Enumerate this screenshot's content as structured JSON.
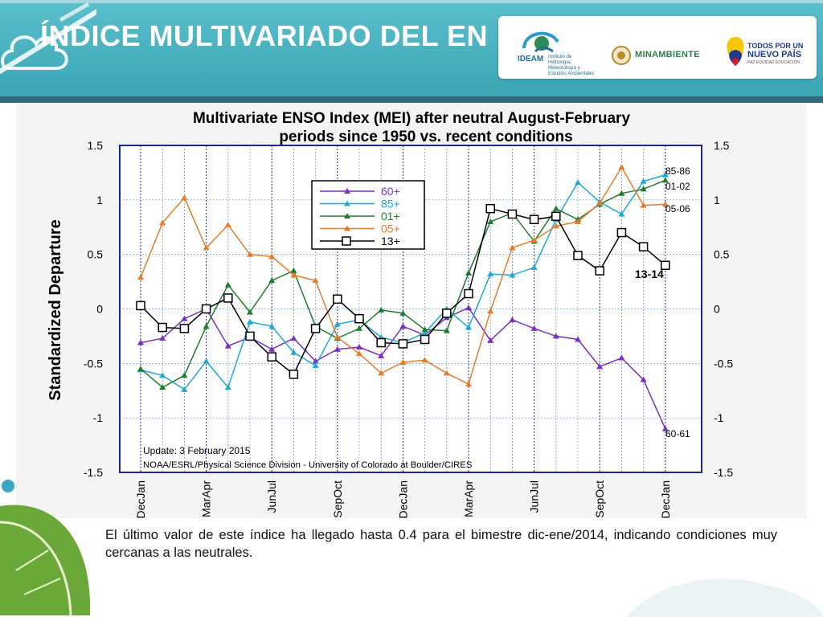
{
  "slide": {
    "title": "ÍNDICE MULTIVARIADO DEL EN",
    "caption": "El último valor de este índice ha llegado hasta 0.4 para el bimestre dic-ene/2014, indicando condiciones muy cercanas a las neutrales."
  },
  "logos": {
    "ideam": {
      "name": "IDEAM",
      "sub": "Instituto de Hidrología, Meteorología y Estudios Ambientales"
    },
    "minambiente": {
      "name": "MINAMBIENTE"
    },
    "nuevo_pais": {
      "line1": "TODOS POR UN",
      "line2": "NUEVO PAÍS",
      "line3": "PAZ  EQUIDAD  EDUCACIÓN"
    }
  },
  "colors": {
    "banner": "#45b1bf",
    "s60": "#7b2fbe",
    "s85": "#1fa8d6",
    "s01": "#1e7d2c",
    "s05": "#e67c2a",
    "s13": "#000000"
  },
  "chart_data": {
    "type": "line",
    "title_line1": "Multivariate ENSO Index (MEI) after neutral August-February",
    "title_line2": "periods since 1950 vs. recent conditions",
    "ylabel": "Standardized Departure",
    "ylim": [
      -1.5,
      1.5
    ],
    "yticks": [
      "1.5",
      "1",
      "0.5",
      "0",
      "-0.5",
      "-1",
      "-1.5"
    ],
    "x_labels": [
      "DecJan",
      "MarApr",
      "JunJul",
      "SepOct",
      "DecJan",
      "MarApr",
      "JunJul",
      "SepOct",
      "DecJan"
    ],
    "update_note": "Update: 3 February 2015",
    "source_note": "NOAA/ESRL/Physical Science Division - University of Colorado at Boulder/CIRES",
    "end_labels": [
      "85-86",
      "01-02",
      "05-06",
      "13-14",
      "60-61"
    ],
    "series": [
      {
        "name": "60+",
        "values": [
          -0.31,
          -0.27,
          -0.09,
          0.0,
          -0.34,
          -0.26,
          -0.37,
          -0.27,
          -0.48,
          -0.37,
          -0.35,
          -0.43,
          -0.16,
          -0.24,
          -0.08,
          0.01,
          -0.29,
          -0.1,
          -0.18,
          -0.25,
          -0.28,
          -0.53,
          -0.45,
          -0.65,
          -1.1
        ]
      },
      {
        "name": "85+",
        "values": [
          -0.56,
          -0.61,
          -0.74,
          -0.48,
          -0.72,
          -0.12,
          -0.16,
          -0.4,
          -0.52,
          -0.14,
          -0.1,
          -0.26,
          -0.31,
          -0.22,
          0.0,
          -0.17,
          0.32,
          0.31,
          0.38,
          0.82,
          1.16,
          0.98,
          0.87,
          1.17,
          1.23
        ]
      },
      {
        "name": "01+",
        "values": [
          -0.55,
          -0.72,
          -0.61,
          -0.16,
          0.22,
          -0.03,
          0.26,
          0.35,
          -0.16,
          -0.27,
          -0.18,
          -0.01,
          -0.04,
          -0.19,
          -0.2,
          0.33,
          0.8,
          0.88,
          0.62,
          0.92,
          0.82,
          0.96,
          1.06,
          1.1,
          1.18
        ]
      },
      {
        "name": "05+",
        "values": [
          0.29,
          0.79,
          1.02,
          0.56,
          0.77,
          0.5,
          0.48,
          0.31,
          0.26,
          -0.26,
          -0.41,
          -0.59,
          -0.49,
          -0.47,
          -0.59,
          -0.69,
          -0.02,
          0.56,
          0.63,
          0.76,
          0.8,
          0.97,
          1.3,
          0.95,
          0.96
        ]
      },
      {
        "name": "13+",
        "values": [
          0.03,
          -0.17,
          -0.18,
          0.0,
          0.1,
          -0.25,
          -0.44,
          -0.6,
          -0.18,
          0.09,
          -0.09,
          -0.31,
          -0.32,
          -0.28,
          -0.04,
          0.14,
          0.92,
          0.87,
          0.82,
          0.85,
          0.49,
          0.35,
          0.7,
          0.57,
          0.4
        ]
      }
    ]
  }
}
